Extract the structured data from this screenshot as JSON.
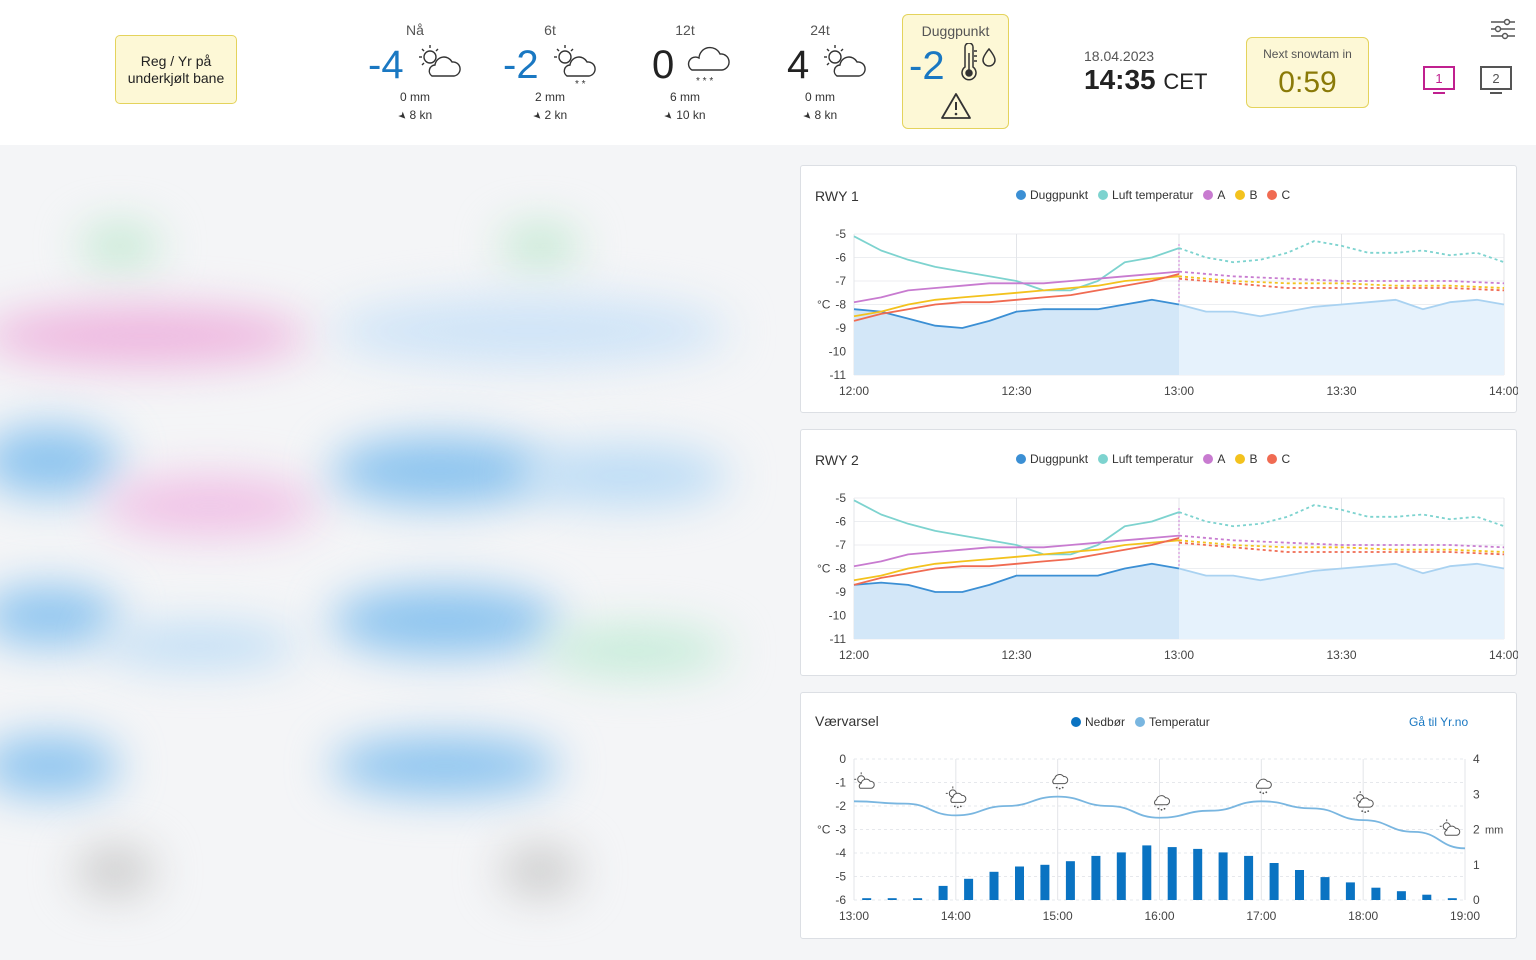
{
  "header": {
    "reg_button": "Reg / Yr på underkjølt bane",
    "forecasts": [
      {
        "label": "Nå",
        "temp": "-4",
        "precip": "0 mm",
        "wind": "8 kn",
        "icon": "partly-cloudy-icon"
      },
      {
        "label": "6t",
        "temp": "-2",
        "precip": "2 mm",
        "wind": "2 kn",
        "icon": "partly-cloudy-snow-icon"
      },
      {
        "label": "12t",
        "temp": "0",
        "precip": "6 mm",
        "wind": "10 kn",
        "icon": "cloud-snow-icon"
      },
      {
        "label": "24t",
        "temp": "4",
        "precip": "0 mm",
        "wind": "8 kn",
        "icon": "partly-cloudy-icon"
      }
    ],
    "dewpoint": {
      "label": "Duggpunkt",
      "temp": "-2"
    },
    "date": "18.04.2023",
    "time": "14:35",
    "timezone": "CET",
    "snowtam": {
      "label": "Next snowtam in",
      "value": "0:59"
    },
    "screens": [
      "1",
      "2"
    ]
  },
  "colors": {
    "dew": "#3b8fd4",
    "air": "#7dd3cf",
    "A": "#c87bd0",
    "B": "#f3c21d",
    "C": "#f06b52",
    "precip_bar": "#0a73c2",
    "temp_line": "#79b6e0",
    "warning": "#e4d35c"
  },
  "rwy1": {
    "title": "RWY 1",
    "legend": [
      "Duggpunkt",
      "Luft temperatur",
      "A",
      "B",
      "C"
    ]
  },
  "rwy2": {
    "title": "RWY 2",
    "legend": [
      "Duggpunkt",
      "Luft temperatur",
      "A",
      "B",
      "C"
    ]
  },
  "forecast_chart": {
    "title": "Værvarsel",
    "legend": [
      "Nedbør",
      "Temperatur"
    ],
    "link": "Gå til Yr.no"
  },
  "chart_data": [
    {
      "type": "line",
      "title": "RWY 1",
      "ylabel": "°C",
      "ylim": [
        -11,
        -5
      ],
      "yticks": [
        "-5",
        "-6",
        "-7",
        "-8",
        "-9",
        "-10",
        "-11"
      ],
      "xticks": [
        "12:00",
        "12:30",
        "13:00",
        "13:30",
        "14:00"
      ],
      "now_minutes": 60,
      "series": [
        {
          "name": "Duggpunkt",
          "x": [
            0,
            5,
            10,
            15,
            20,
            25,
            30,
            35,
            40,
            45,
            50,
            55,
            60
          ],
          "y": [
            -8.2,
            -8.3,
            -8.6,
            -8.9,
            -9.0,
            -8.7,
            -8.3,
            -8.2,
            -8.2,
            -8.2,
            -8.0,
            -7.8,
            -8.0
          ]
        },
        {
          "name": "Luft temperatur",
          "x": [
            0,
            5,
            10,
            15,
            20,
            25,
            30,
            35,
            40,
            45,
            50,
            55,
            60
          ],
          "y": [
            -5.1,
            -5.7,
            -6.1,
            -6.4,
            -6.6,
            -6.8,
            -7.0,
            -7.4,
            -7.4,
            -7.0,
            -6.2,
            -6.0,
            -5.6
          ]
        },
        {
          "name": "A",
          "x": [
            0,
            5,
            10,
            15,
            20,
            25,
            30,
            35,
            40,
            45,
            50,
            55,
            60
          ],
          "y": [
            -7.9,
            -7.7,
            -7.4,
            -7.3,
            -7.2,
            -7.1,
            -7.1,
            -7.1,
            -7.0,
            -6.9,
            -6.8,
            -6.7,
            -6.6
          ]
        },
        {
          "name": "B",
          "x": [
            0,
            5,
            10,
            15,
            20,
            25,
            30,
            35,
            40,
            45,
            50,
            55,
            60
          ],
          "y": [
            -8.5,
            -8.3,
            -8.0,
            -7.8,
            -7.7,
            -7.6,
            -7.5,
            -7.4,
            -7.3,
            -7.2,
            -7.0,
            -6.9,
            -6.8
          ]
        },
        {
          "name": "C",
          "x": [
            0,
            5,
            10,
            15,
            20,
            25,
            30,
            35,
            40,
            45,
            50,
            55,
            60
          ],
          "y": [
            -8.7,
            -8.4,
            -8.2,
            -8.0,
            -7.9,
            -7.9,
            -7.8,
            -7.7,
            -7.6,
            -7.4,
            -7.2,
            -7.0,
            -6.7
          ]
        },
        {
          "name": "Duggpunkt prognose",
          "x": [
            60,
            65,
            70,
            75,
            80,
            85,
            90,
            95,
            100,
            105,
            110,
            115,
            120
          ],
          "y": [
            -8.0,
            -8.3,
            -8.3,
            -8.5,
            -8.3,
            -8.1,
            -8.0,
            -7.9,
            -7.8,
            -8.2,
            -7.9,
            -7.8,
            -8.0
          ]
        },
        {
          "name": "Luft temperatur prognose",
          "x": [
            60,
            65,
            70,
            75,
            80,
            85,
            90,
            95,
            100,
            105,
            110,
            115,
            120
          ],
          "y": [
            -5.6,
            -6.0,
            -6.2,
            -6.1,
            -5.8,
            -5.3,
            -5.5,
            -5.8,
            -5.8,
            -5.7,
            -5.9,
            -5.8,
            -6.2
          ]
        },
        {
          "name": "A prognose",
          "x": [
            60,
            70,
            80,
            90,
            100,
            110,
            120
          ],
          "y": [
            -6.6,
            -6.8,
            -6.9,
            -7.0,
            -7.0,
            -7.0,
            -7.1
          ]
        },
        {
          "name": "B prognose",
          "x": [
            60,
            70,
            80,
            90,
            100,
            110,
            120
          ],
          "y": [
            -6.8,
            -7.0,
            -7.1,
            -7.1,
            -7.2,
            -7.2,
            -7.3
          ]
        },
        {
          "name": "C prognose",
          "x": [
            60,
            70,
            80,
            90,
            100,
            110,
            120
          ],
          "y": [
            -6.9,
            -7.1,
            -7.3,
            -7.3,
            -7.3,
            -7.3,
            -7.4
          ]
        }
      ]
    },
    {
      "type": "line",
      "title": "RWY 2",
      "ylabel": "°C",
      "ylim": [
        -11,
        -5
      ],
      "yticks": [
        "-5",
        "-6",
        "-7",
        "-8",
        "-9",
        "-10",
        "-11"
      ],
      "xticks": [
        "12:00",
        "12:30",
        "13:00",
        "13:30",
        "14:00"
      ],
      "now_minutes": 60,
      "series": [
        {
          "name": "Duggpunkt",
          "x": [
            0,
            5,
            10,
            15,
            20,
            25,
            30,
            35,
            40,
            45,
            50,
            55,
            60
          ],
          "y": [
            -8.7,
            -8.6,
            -8.7,
            -9.0,
            -9.0,
            -8.7,
            -8.3,
            -8.3,
            -8.3,
            -8.3,
            -8.0,
            -7.8,
            -8.0
          ]
        },
        {
          "name": "Luft temperatur",
          "x": [
            0,
            5,
            10,
            15,
            20,
            25,
            30,
            35,
            40,
            45,
            50,
            55,
            60
          ],
          "y": [
            -5.1,
            -5.7,
            -6.1,
            -6.4,
            -6.6,
            -6.8,
            -7.0,
            -7.4,
            -7.4,
            -7.0,
            -6.2,
            -6.0,
            -5.6
          ]
        },
        {
          "name": "A",
          "x": [
            0,
            5,
            10,
            15,
            20,
            25,
            30,
            35,
            40,
            45,
            50,
            55,
            60
          ],
          "y": [
            -7.9,
            -7.7,
            -7.4,
            -7.3,
            -7.2,
            -7.1,
            -7.1,
            -7.1,
            -7.0,
            -6.9,
            -6.8,
            -6.7,
            -6.6
          ]
        },
        {
          "name": "B",
          "x": [
            0,
            5,
            10,
            15,
            20,
            25,
            30,
            35,
            40,
            45,
            50,
            55,
            60
          ],
          "y": [
            -8.5,
            -8.3,
            -8.0,
            -7.8,
            -7.7,
            -7.6,
            -7.5,
            -7.4,
            -7.3,
            -7.2,
            -7.0,
            -6.9,
            -6.8
          ]
        },
        {
          "name": "C",
          "x": [
            0,
            5,
            10,
            15,
            20,
            25,
            30,
            35,
            40,
            45,
            50,
            55,
            60
          ],
          "y": [
            -8.7,
            -8.4,
            -8.2,
            -8.0,
            -7.9,
            -7.9,
            -7.8,
            -7.7,
            -7.6,
            -7.4,
            -7.2,
            -7.0,
            -6.7
          ]
        },
        {
          "name": "Duggpunkt prognose",
          "x": [
            60,
            65,
            70,
            75,
            80,
            85,
            90,
            95,
            100,
            105,
            110,
            115,
            120
          ],
          "y": [
            -8.0,
            -8.3,
            -8.3,
            -8.5,
            -8.3,
            -8.1,
            -8.0,
            -7.9,
            -7.8,
            -8.2,
            -7.9,
            -7.8,
            -8.0
          ]
        },
        {
          "name": "Luft temperatur prognose",
          "x": [
            60,
            65,
            70,
            75,
            80,
            85,
            90,
            95,
            100,
            105,
            110,
            115,
            120
          ],
          "y": [
            -5.6,
            -6.0,
            -6.2,
            -6.1,
            -5.8,
            -5.3,
            -5.5,
            -5.8,
            -5.8,
            -5.7,
            -5.9,
            -5.8,
            -6.2
          ]
        },
        {
          "name": "A prognose",
          "x": [
            60,
            70,
            80,
            90,
            100,
            110,
            120
          ],
          "y": [
            -6.6,
            -6.8,
            -6.9,
            -7.0,
            -7.0,
            -7.0,
            -7.1
          ]
        },
        {
          "name": "B prognose",
          "x": [
            60,
            70,
            80,
            90,
            100,
            110,
            120
          ],
          "y": [
            -6.8,
            -7.0,
            -7.1,
            -7.1,
            -7.2,
            -7.2,
            -7.3
          ]
        },
        {
          "name": "C prognose",
          "x": [
            60,
            70,
            80,
            90,
            100,
            110,
            120
          ],
          "y": [
            -6.9,
            -7.1,
            -7.3,
            -7.3,
            -7.3,
            -7.3,
            -7.4
          ]
        }
      ]
    },
    {
      "type": "bar",
      "title": "Værvarsel",
      "ylabel": "°C",
      "y2label": "mm",
      "ylim": [
        -6,
        0
      ],
      "y2lim": [
        0,
        4
      ],
      "yticks": [
        "0",
        "-1",
        "-2",
        "-3",
        "-4",
        "-5",
        "-6"
      ],
      "y2ticks": [
        "4",
        "3",
        "2",
        "1",
        "0"
      ],
      "xticks": [
        "13:00",
        "14:00",
        "15:00",
        "16:00",
        "17:00",
        "18:00",
        "19:00"
      ],
      "bar_hours": [
        13.125,
        13.375,
        13.625,
        13.875,
        14.125,
        14.375,
        14.625,
        14.875,
        15.125,
        15.375,
        15.625,
        15.875,
        16.125,
        16.375,
        16.625,
        16.875,
        17.125,
        17.375,
        17.625,
        17.875,
        18.125,
        18.375,
        18.625,
        18.875
      ],
      "precip_mm": [
        0.05,
        0.05,
        0.05,
        0.4,
        0.6,
        0.8,
        0.95,
        1.0,
        1.1,
        1.25,
        1.35,
        1.55,
        1.5,
        1.45,
        1.35,
        1.25,
        1.05,
        0.85,
        0.65,
        0.5,
        0.35,
        0.25,
        0.15,
        0.05
      ],
      "temp_hours": [
        13,
        13.5,
        14,
        14.5,
        15,
        15.5,
        16,
        16.5,
        17,
        17.5,
        18,
        18.5,
        19
      ],
      "temp_c": [
        -1.8,
        -1.9,
        -2.4,
        -2.0,
        -1.6,
        -2.0,
        -2.5,
        -2.2,
        -1.8,
        -2.1,
        -2.6,
        -3.1,
        -3.8
      ],
      "weather_icons": [
        {
          "hour": 13.1,
          "icon": "partly-cloudy-icon"
        },
        {
          "hour": 14.0,
          "icon": "partly-cloudy-snow-icon"
        },
        {
          "hour": 15.0,
          "icon": "cloud-snow-icon"
        },
        {
          "hour": 16.0,
          "icon": "cloud-snow-icon"
        },
        {
          "hour": 17.0,
          "icon": "cloud-snow-icon"
        },
        {
          "hour": 18.0,
          "icon": "partly-cloudy-snow-icon"
        },
        {
          "hour": 18.85,
          "icon": "partly-cloudy-icon"
        }
      ]
    }
  ]
}
